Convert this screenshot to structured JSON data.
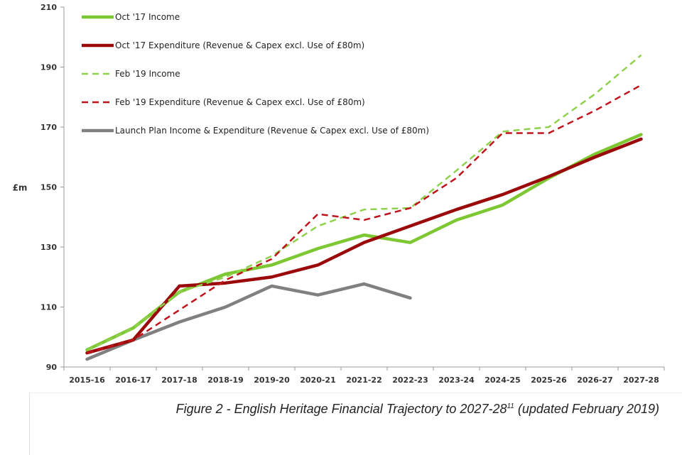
{
  "chart_data": {
    "type": "line",
    "title": "",
    "xlabel": "",
    "ylabel": "£m",
    "ylim": [
      90,
      210
    ],
    "yticks": [
      90,
      110,
      130,
      150,
      170,
      190,
      210
    ],
    "grid": false,
    "legend_position": "top-left",
    "categories": [
      "2015-16",
      "2016-17",
      "2017-18",
      "2018-19",
      "2019-20",
      "2020-21",
      "2021-22",
      "2022-23",
      "2023-24",
      "2024-25",
      "2025-26",
      "2026-27",
      "2027-28"
    ],
    "series": [
      {
        "name": "Oct '17 Income",
        "color": "#7dc832",
        "dash": false,
        "values": [
          95.7,
          103,
          115,
          121,
          124,
          129.5,
          134,
          131.5,
          139,
          144,
          153,
          161,
          167.5
        ]
      },
      {
        "name": "Oct '17 Expenditure (Revenue & Capex excl. Use of £80m)",
        "color": "#9b0a0a",
        "dash": false,
        "values": [
          94.7,
          99,
          117,
          118,
          120,
          124,
          131.5,
          137,
          142.5,
          147.5,
          153.5,
          160,
          166
        ]
      },
      {
        "name": "Feb '19 Income",
        "color": "#8fd14f",
        "dash": true,
        "values": [
          95.5,
          103,
          115,
          120,
          127,
          137,
          142.5,
          143,
          155.5,
          168.5,
          170,
          181,
          194
        ]
      },
      {
        "name": "Feb '19 Expenditure (Revenue & Capex excl. Use of £80m)",
        "color": "#c0141c",
        "dash": true,
        "values": [
          94.7,
          99,
          109,
          119,
          126,
          141,
          139,
          143,
          153,
          168,
          168,
          175.5,
          184
        ]
      },
      {
        "name": "Launch Plan Income & Expenditure (Revenue & Capex excl. Use of £80m)",
        "color": "#808080",
        "dash": false,
        "values": [
          92.6,
          99,
          105,
          110,
          117,
          114,
          117.7,
          113,
          null,
          null,
          null,
          null,
          null
        ]
      }
    ]
  },
  "caption": {
    "text": "Figure 2 - English Heritage Financial Trajectory to 2027-28",
    "footnote": "11",
    "suffix": " (updated February 2019)"
  }
}
